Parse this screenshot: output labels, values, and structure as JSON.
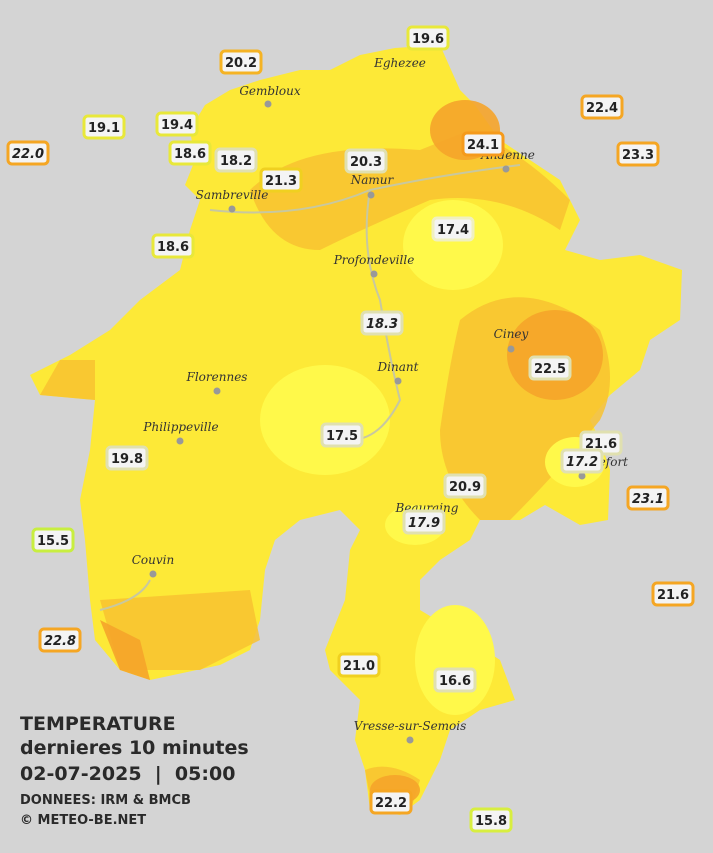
{
  "legend": {
    "title": "TEMPERATURE",
    "period": "dernieres 10 minutes",
    "datetime": "02-07-2025  |  05:00",
    "source": "DONNEES: IRM & BMCB",
    "credit": "© METEO-BE.NET"
  },
  "cities": [
    "Eghezee",
    "Gembloux",
    "Andenne",
    "Namur",
    "Sambreville",
    "Profondeville",
    "Ciney",
    "Florennes",
    "Dinant",
    "Philippeville",
    "Rochefort",
    "Beauraing",
    "Couvin",
    "Vresse-sur-Semois"
  ],
  "stations": [
    {
      "value": "19.6",
      "color": "#e8e83a"
    },
    {
      "value": "20.2",
      "color": "#f5b324"
    },
    {
      "value": "22.4",
      "color": "#f5a623"
    },
    {
      "value": "19.1",
      "color": "#e8e83a"
    },
    {
      "value": "19.4",
      "color": "#e8e83a"
    },
    {
      "value": "22.0",
      "color": "#f5a623",
      "italic": true
    },
    {
      "value": "18.6",
      "color": "#e8e83a"
    },
    {
      "value": "18.2",
      "color": "#e0e0b0"
    },
    {
      "value": "24.1",
      "color": "#f59a1b"
    },
    {
      "value": "23.3",
      "color": "#f5a623"
    },
    {
      "value": "20.3",
      "color": "#e0e0b0"
    },
    {
      "value": "21.3",
      "color": "#f0d020"
    },
    {
      "value": "17.4",
      "color": "#f0f0c0"
    },
    {
      "value": "18.6",
      "color": "#e8e83a"
    },
    {
      "value": "18.3",
      "color": "#e0e0b0",
      "italic": true
    },
    {
      "value": "22.5",
      "color": "#e0e0b0"
    },
    {
      "value": "17.5",
      "color": "#e0e0b0"
    },
    {
      "value": "21.6",
      "color": "#e0e0b0"
    },
    {
      "value": "17.2",
      "color": "#e0e0b0",
      "italic": true
    },
    {
      "value": "19.8",
      "color": "#e0e0b0"
    },
    {
      "value": "20.9",
      "color": "#e0e0b0"
    },
    {
      "value": "23.1",
      "color": "#f5a623",
      "italic": true
    },
    {
      "value": "17.9",
      "color": "#e0e0b0",
      "italic": true
    },
    {
      "value": "15.5",
      "color": "#c8ee40"
    },
    {
      "value": "21.6",
      "color": "#f5a623"
    },
    {
      "value": "22.8",
      "color": "#f5a623",
      "italic": true
    },
    {
      "value": "21.0",
      "color": "#f0d020"
    },
    {
      "value": "16.6",
      "color": "#e0e0b0"
    },
    {
      "value": "22.2",
      "color": "#f5a623"
    },
    {
      "value": "15.8",
      "color": "#d8ee40"
    }
  ]
}
